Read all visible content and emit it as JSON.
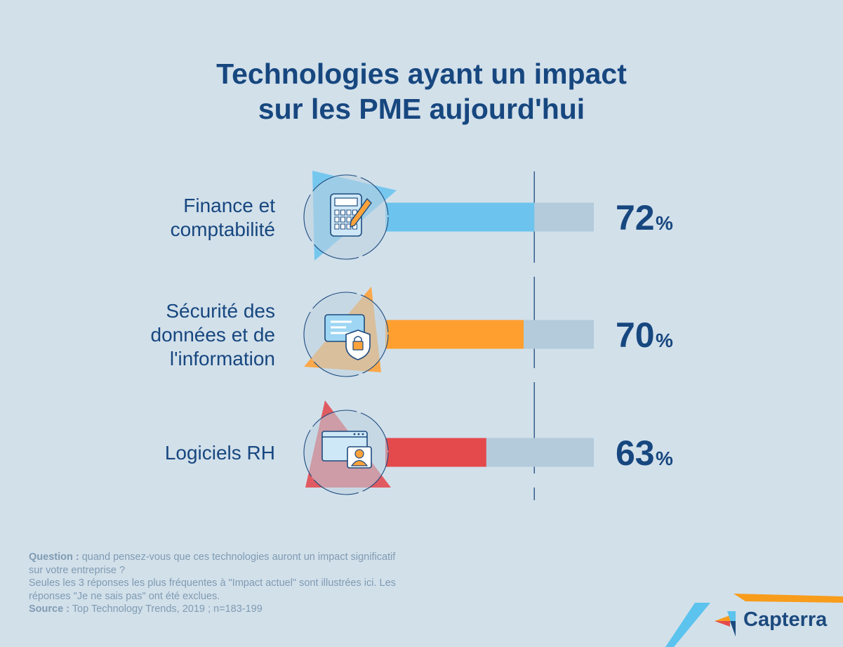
{
  "title": {
    "line1": "Technologies ayant un impact",
    "line2": "sur les PME aujourd'hui"
  },
  "chart_data": {
    "type": "bar",
    "title": "Technologies ayant un impact sur les PME aujourd'hui",
    "categories": [
      "Finance et comptabilité",
      "Sécurité des données et de l'information",
      "Logiciels RH"
    ],
    "values": [
      72,
      70,
      63
    ],
    "unit": "%",
    "xlim": [
      0,
      100
    ],
    "orientation": "horizontal",
    "bars": [
      {
        "label_lines": [
          "Finance et",
          "comptabilité"
        ],
        "value": 72,
        "value_text": "72",
        "color": "#6cc4ee",
        "icon": "calculator-icon",
        "triangle_color": "#6cc4ee"
      },
      {
        "label_lines": [
          "Sécurité des",
          "données et de",
          "l'information"
        ],
        "value": 70,
        "value_text": "70",
        "color": "#ff9f2f",
        "icon": "security-shield-icon",
        "triangle_color": "#ffa23a"
      },
      {
        "label_lines": [
          "Logiciels RH"
        ],
        "value": 63,
        "value_text": "63",
        "color": "#e44a4c",
        "icon": "hr-profile-icon",
        "triangle_color": "#e14c52"
      }
    ],
    "reference_value": 72,
    "track_color": "#b3cbdb",
    "percent_symbol": "%"
  },
  "footer": {
    "question_label": "Question :",
    "question_text": "quand pensez-vous que ces technologies auront un impact significatif",
    "question_text_2": "sur votre entreprise ?",
    "note_line1": "Seules les 3 réponses les plus fréquentes à \"Impact actuel\" sont illustrées ici. Les",
    "note_line2": "réponses \"Je ne sais pas\" ont été exclues.",
    "source_label": "Source :",
    "source_text": "Top Technology Trends, 2019 ; n=183-199"
  },
  "brand": {
    "name": "Capterra",
    "colors": {
      "orange": "#f89c1c",
      "blue": "#5bc3ee",
      "navy": "#1c4a7e",
      "red": "#e44a4c"
    }
  }
}
